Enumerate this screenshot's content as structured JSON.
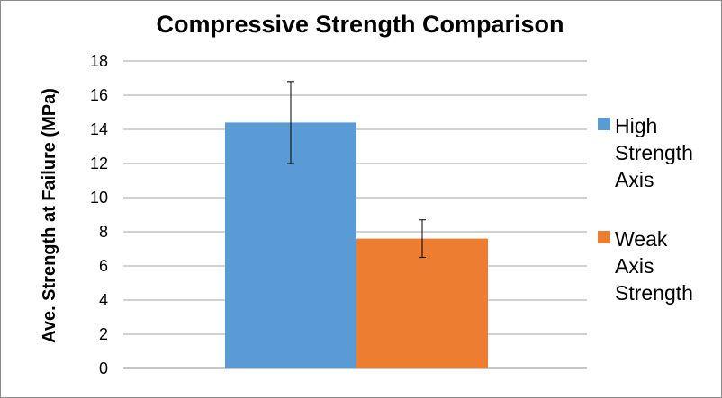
{
  "chart_data": {
    "type": "bar",
    "title": "Compressive Strength Comparison",
    "ylabel": "Ave. Strength at Failure (MPa)",
    "xlabel": "",
    "ylim": [
      0,
      18
    ],
    "yticks": [
      0,
      2,
      4,
      6,
      8,
      10,
      12,
      14,
      16,
      18
    ],
    "grid": true,
    "legend_position": "right",
    "series": [
      {
        "name": "High Strength Axis",
        "value": 14.4,
        "error_low": 12.0,
        "error_high": 16.8,
        "color": "#5b9bd5"
      },
      {
        "name": "Weak Axis Strength",
        "value": 7.6,
        "error_low": 6.5,
        "error_high": 8.7,
        "color": "#ed7d31"
      }
    ]
  }
}
